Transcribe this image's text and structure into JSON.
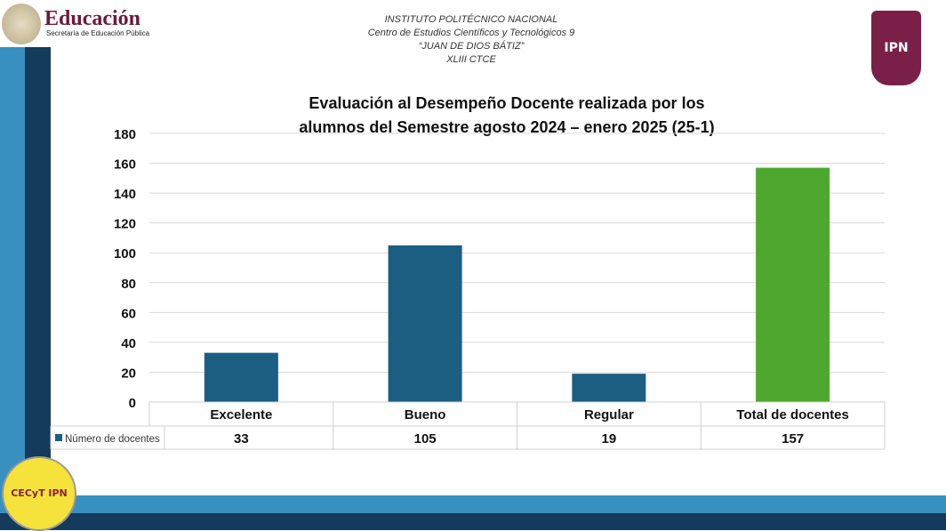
{
  "header": {
    "sep_logo": {
      "title": "Educación",
      "subtitle": "Secretaría de Educación Pública"
    },
    "lines": [
      "INSTITUTO POLITÉCNICO NACIONAL",
      "Centro de Estudios Científicos y Tecnológicos 9",
      "“JUAN DE DIOS  BÁTIZ”",
      "XLIII CTCE"
    ],
    "ipn_logo": "IPN",
    "cecyt_logo": "CECyT IPN"
  },
  "colors": {
    "bar": "#1b5e82",
    "total_bar": "#4ea72e",
    "stripe_light": "#3790c0",
    "stripe_dark": "#143a5c"
  },
  "chart_data": {
    "type": "bar",
    "title": "Evaluación al Desempeño Docente realizada por los alumnos del Semestre agosto 2024 – enero 2025 (25-1)",
    "title_lines": [
      "Evaluación al Desempeño Docente realizada por los",
      "alumnos del Semestre agosto 2024 – enero 2025 (25-1)"
    ],
    "categories": [
      "Excelente",
      "Bueno",
      "Regular",
      "Total de docentes"
    ],
    "series": [
      {
        "name": "Número de docentes",
        "values": [
          33,
          105,
          19,
          157
        ]
      }
    ],
    "ylim": [
      0,
      180
    ],
    "yticks": [
      0,
      20,
      40,
      60,
      80,
      100,
      120,
      140,
      160,
      180
    ],
    "grid": true,
    "data_table": true
  }
}
